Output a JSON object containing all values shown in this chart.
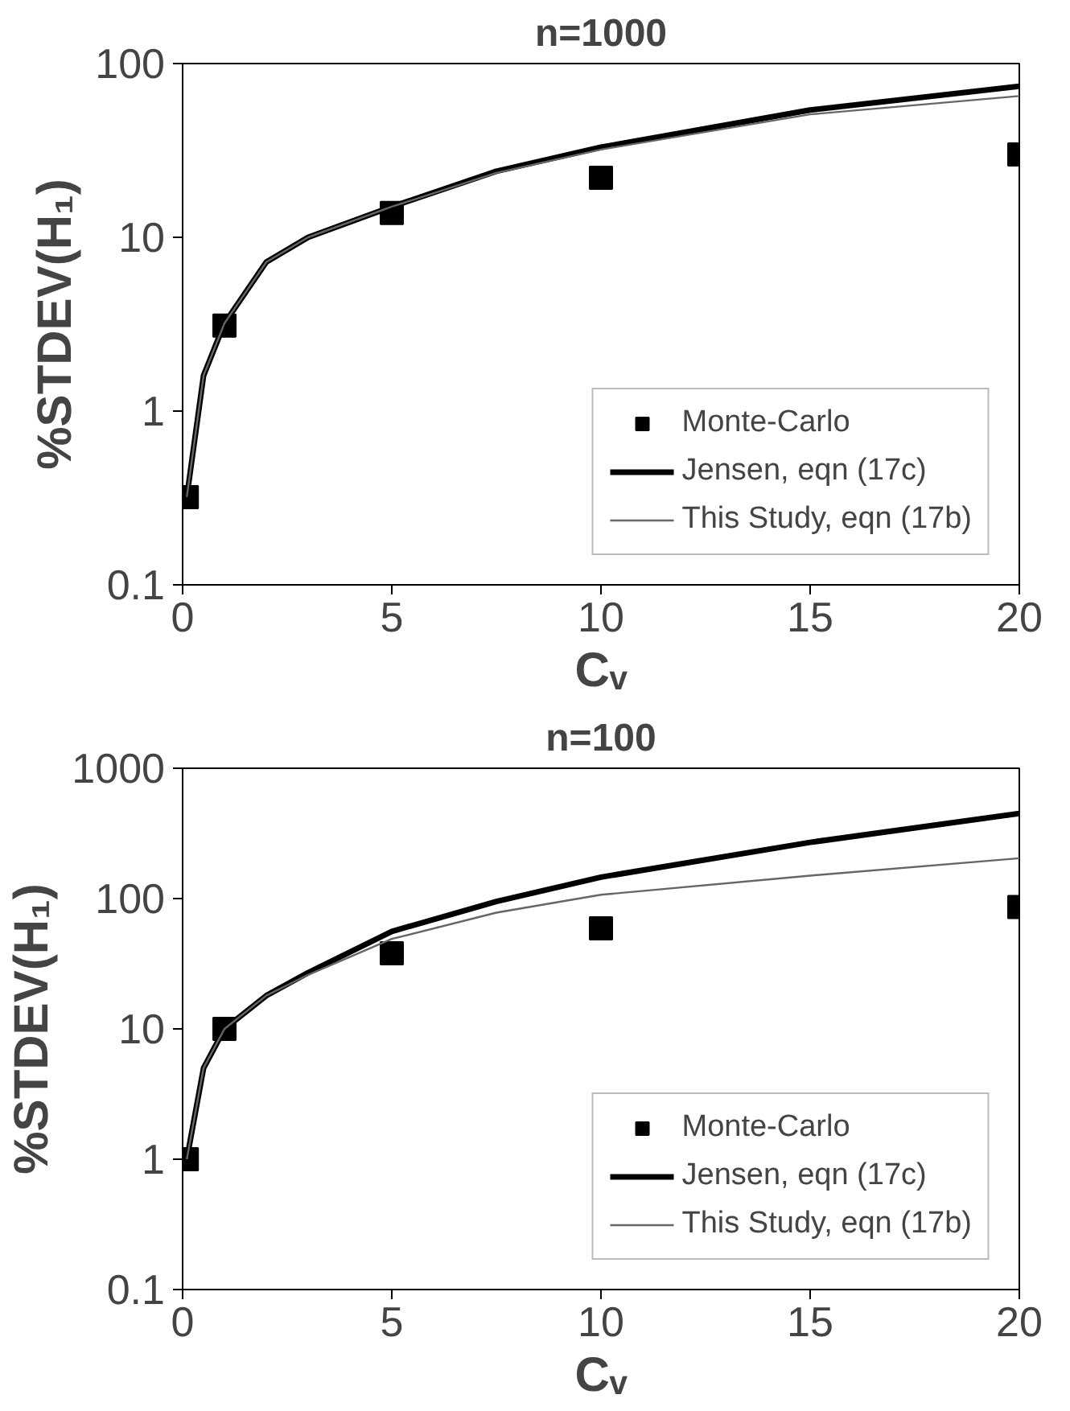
{
  "chart_data": [
    {
      "type": "line",
      "title": "n=1000",
      "xlabel": "Cᵥ",
      "ylabel": "%STDEV(H₁)",
      "log": "y",
      "grid": false,
      "legend": "bottom right",
      "xlim": [
        0,
        20
      ],
      "xticks": [
        0,
        5,
        10,
        15,
        20
      ],
      "ylim": [
        0.1,
        100
      ],
      "yticks": [
        0.1,
        1,
        10,
        100
      ],
      "series": [
        {
          "name": "Monte-Carlo",
          "type": "scatter",
          "marker": "square",
          "color": "#000000",
          "x": [
            0.1,
            1,
            5,
            10,
            20
          ],
          "values": [
            0.32,
            3.1,
            13.8,
            22,
            30
          ]
        },
        {
          "name": "Jensen, eqn (17c)",
          "color": "#000000",
          "x": [
            0.1,
            0.5,
            1,
            2,
            3,
            5,
            7.5,
            10,
            15,
            20
          ],
          "values": [
            0.32,
            1.6,
            3.2,
            7.2,
            10,
            15,
            24,
            33,
            54,
            74
          ]
        },
        {
          "name": "This Study, eqn (17b)",
          "color": "#666666",
          "x": [
            0.1,
            0.5,
            1,
            2,
            3,
            5,
            7.5,
            10,
            15,
            20
          ],
          "values": [
            0.32,
            1.6,
            3.2,
            7.2,
            10,
            15,
            23.5,
            32,
            51,
            65
          ]
        }
      ]
    },
    {
      "type": "line",
      "title": "n=100",
      "xlabel": "Cᵥ",
      "ylabel": "%STDEV(H₁)",
      "log": "y",
      "grid": false,
      "legend": "bottom right",
      "xlim": [
        0,
        20
      ],
      "xticks": [
        0,
        5,
        10,
        15,
        20
      ],
      "ylim": [
        0.1,
        1000
      ],
      "yticks": [
        0.1,
        1,
        10,
        100,
        1000
      ],
      "series": [
        {
          "name": "Monte-Carlo",
          "type": "scatter",
          "marker": "square",
          "color": "#000000",
          "x": [
            0.1,
            1,
            5,
            10,
            20
          ],
          "values": [
            1.0,
            10,
            38,
            59,
            86
          ]
        },
        {
          "name": "Jensen, eqn (17c)",
          "color": "#000000",
          "x": [
            0.1,
            0.5,
            1,
            2,
            3,
            5,
            7.5,
            10,
            15,
            20
          ],
          "values": [
            1.0,
            5,
            10,
            18,
            27,
            56,
            95,
            146,
            270,
            450
          ]
        },
        {
          "name": "This Study, eqn (17b)",
          "color": "#666666",
          "x": [
            0.1,
            0.5,
            1,
            2,
            3,
            5,
            7.5,
            10,
            15,
            20
          ],
          "values": [
            1.0,
            5,
            10,
            18,
            26,
            49,
            78,
            107,
            150,
            204
          ]
        }
      ]
    }
  ]
}
